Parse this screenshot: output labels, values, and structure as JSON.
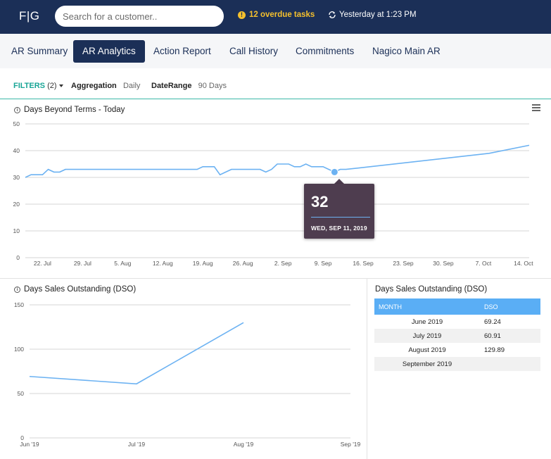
{
  "header": {
    "logo": "F|G",
    "search_placeholder": "Search for a customer..",
    "overdue": "12 overdue tasks",
    "last_sync": "Yesterday at 1:23 PM",
    "icons": [
      "warning-icon",
      "sync-icon"
    ]
  },
  "tabs": [
    {
      "label": "AR Summary"
    },
    {
      "label": "AR Analytics",
      "active": true
    },
    {
      "label": "Action Report"
    },
    {
      "label": "Call History"
    },
    {
      "label": "Commitments"
    },
    {
      "label": "Nagico Main AR"
    }
  ],
  "filters": {
    "label": "FILTERS",
    "count": "(2)",
    "aggregation_label": "Aggregation",
    "aggregation_value": "Daily",
    "daterange_label": "DateRange",
    "daterange_value": "90 Days"
  },
  "colors": {
    "brand": "#1b2f57",
    "accent": "#18a596",
    "warning": "#f5c02d",
    "series": "#6cb2f2",
    "tooltip": "#4e3d4f",
    "table_header": "#5aaef5"
  },
  "chart_data": [
    {
      "type": "line",
      "title": "Days Beyond Terms - Today",
      "x": [
        "2019-07-19",
        "2019-07-20",
        "2019-07-21",
        "2019-07-22",
        "2019-07-23",
        "2019-07-24",
        "2019-07-25",
        "2019-07-26",
        "2019-07-27",
        "2019-07-28",
        "2019-07-29",
        "2019-07-30",
        "2019-07-31",
        "2019-08-01",
        "2019-08-02",
        "2019-08-03",
        "2019-08-04",
        "2019-08-05",
        "2019-08-06",
        "2019-08-07",
        "2019-08-08",
        "2019-08-09",
        "2019-08-10",
        "2019-08-11",
        "2019-08-12",
        "2019-08-13",
        "2019-08-14",
        "2019-08-15",
        "2019-08-16",
        "2019-08-17",
        "2019-08-18",
        "2019-08-19",
        "2019-08-20",
        "2019-08-21",
        "2019-08-22",
        "2019-08-23",
        "2019-08-24",
        "2019-08-25",
        "2019-08-26",
        "2019-08-27",
        "2019-08-28",
        "2019-08-29",
        "2019-08-30",
        "2019-08-31",
        "2019-09-01",
        "2019-09-02",
        "2019-09-03",
        "2019-09-04",
        "2019-09-05",
        "2019-09-06",
        "2019-09-07",
        "2019-09-08",
        "2019-09-09",
        "2019-09-10",
        "2019-09-11",
        "2019-09-12",
        "2019-09-13",
        "2019-10-08",
        "2019-10-15"
      ],
      "values": [
        30,
        31,
        31,
        31,
        33,
        32,
        32,
        33,
        33,
        33,
        33,
        33,
        33,
        33,
        33,
        33,
        33,
        33,
        33,
        33,
        33,
        33,
        33,
        33,
        33,
        33,
        33,
        33,
        33,
        33,
        33,
        34,
        34,
        34,
        31,
        32,
        33,
        33,
        33,
        33,
        33,
        33,
        32,
        33,
        35,
        35,
        35,
        34,
        34,
        35,
        34,
        34,
        34,
        33,
        32,
        33,
        33,
        39,
        42
      ],
      "xticks": [
        "22. Jul",
        "29. Jul",
        "5. Aug",
        "12. Aug",
        "19. Aug",
        "26. Aug",
        "2. Sep",
        "9. Sep",
        "16. Sep",
        "23. Sep",
        "30. Sep",
        "7. Oct",
        "14. Oct"
      ],
      "yticks": [
        "0",
        "10",
        "20",
        "30",
        "40",
        "50"
      ],
      "ylim": [
        0,
        50
      ],
      "grid": true,
      "tooltip": {
        "value": "32",
        "date": "WED, SEP 11, 2019"
      }
    },
    {
      "type": "line",
      "title": "Days Sales Outstanding (DSO)",
      "categories": [
        "Jun '19",
        "Jul '19",
        "Aug '19",
        "Sep '19"
      ],
      "values": [
        69.24,
        60.91,
        129.89,
        null
      ],
      "yticks": [
        "0",
        "50",
        "100",
        "150"
      ],
      "ylim": [
        0,
        150
      ],
      "grid": true
    }
  ],
  "dso_table": {
    "title": "Days Sales Outstanding (DSO)",
    "columns": [
      "MONTH",
      "DSO"
    ],
    "rows": [
      [
        "June 2019",
        "69.24"
      ],
      [
        "July 2019",
        "60.91"
      ],
      [
        "August 2019",
        "129.89"
      ],
      [
        "September 2019",
        ""
      ]
    ]
  }
}
